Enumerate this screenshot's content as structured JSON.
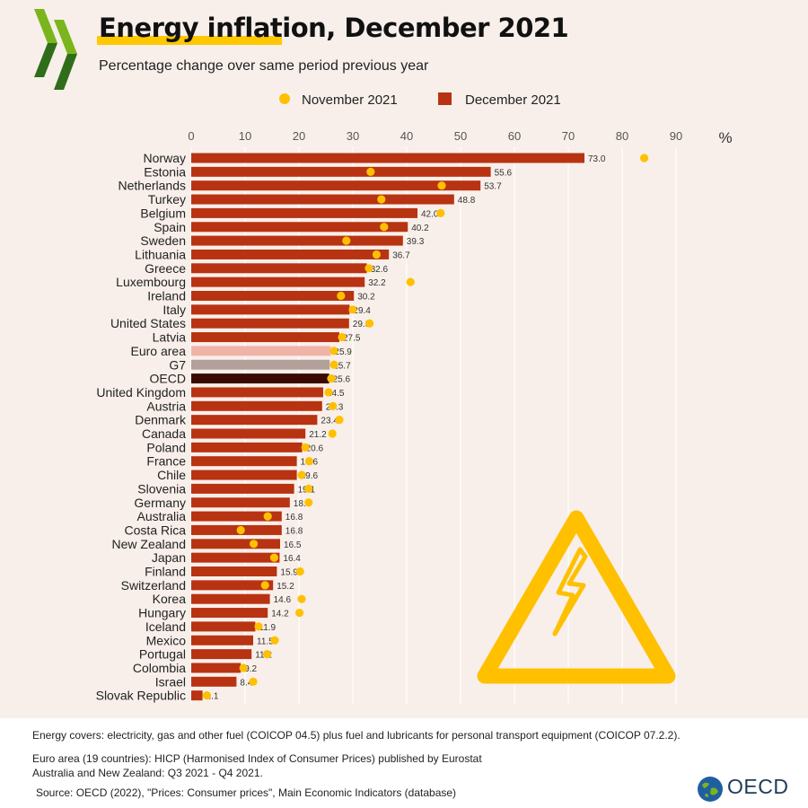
{
  "title": "Energy inflation, December 2021",
  "subtitle": "Percentage change over same period previous year",
  "colors": {
    "bar": "#b83312",
    "euro_area": "#f0b3a8",
    "g7": "#b4a09b",
    "oecd": "#3a0a00",
    "dot": "#ffc000",
    "background": "#f8efea",
    "warning": "#ffc000"
  },
  "chart_data": {
    "type": "bar",
    "orientation": "horizontal",
    "unit_label": "%",
    "xlim": [
      0,
      95
    ],
    "xticks": [
      0,
      10,
      20,
      30,
      40,
      50,
      60,
      70,
      80,
      90
    ],
    "grid": true,
    "legend": [
      {
        "name": "November 2021",
        "marker": "dot"
      },
      {
        "name": "December 2021",
        "marker": "bar"
      }
    ],
    "categories": [
      "Norway",
      "Estonia",
      "Netherlands",
      "Turkey",
      "Belgium",
      "Spain",
      "Sweden",
      "Lithuania",
      "Greece",
      "Luxembourg",
      "Ireland",
      "Italy",
      "United States",
      "Latvia",
      "Euro area",
      "G7",
      "OECD",
      "United Kingdom",
      "Austria",
      "Denmark",
      "Canada",
      "Poland",
      "France",
      "Chile",
      "Slovenia",
      "Germany",
      "Australia",
      "Costa Rica",
      "New Zealand",
      "Japan",
      "Finland",
      "Switzerland",
      "Korea",
      "Hungary",
      "Iceland",
      "Mexico",
      "Portugal",
      "Colombia",
      "Israel",
      "Slovak Republic"
    ],
    "series": [
      {
        "name": "December 2021",
        "values": [
          73.0,
          55.6,
          53.7,
          48.8,
          42.0,
          40.2,
          39.3,
          36.7,
          32.6,
          32.2,
          30.2,
          29.4,
          29.3,
          27.5,
          25.9,
          25.7,
          25.6,
          24.5,
          24.3,
          23.4,
          21.2,
          20.6,
          19.6,
          19.6,
          19.1,
          18.3,
          16.8,
          16.8,
          16.5,
          16.4,
          15.9,
          15.2,
          14.6,
          14.2,
          11.9,
          11.5,
          11.2,
          9.2,
          8.4,
          2.1
        ],
        "labels": [
          "73.0",
          "55.6",
          "53.7",
          "48.8",
          "42.0",
          "40.2",
          "39.3",
          "36.7",
          "32.6",
          "32.2",
          "30.2",
          "29.4",
          "29.3",
          "27.5",
          "25.9",
          "25.7",
          "25.6",
          "24.5",
          "24.3",
          "23.4",
          "21.2",
          "20.6",
          "19.6",
          "19.6",
          "19.1",
          "18.3",
          "16.8",
          "16.8",
          "16.5",
          "16.4",
          "15.9",
          "15.2",
          "14.6",
          "14.2",
          "11.9",
          "11.5",
          "11.2",
          "9.2",
          "8.4",
          "2.1"
        ]
      },
      {
        "name": "November 2021",
        "values": [
          84.1,
          33.3,
          46.5,
          35.3,
          46.3,
          35.8,
          28.8,
          34.4,
          33.0,
          40.7,
          27.8,
          30.0,
          33.1,
          28.0,
          26.5,
          26.5,
          26.0,
          25.5,
          26.3,
          27.5,
          26.2,
          21.2,
          21.9,
          20.5,
          21.8,
          21.8,
          14.2,
          9.2,
          11.6,
          15.4,
          20.2,
          13.7,
          20.5,
          20.1,
          12.5,
          15.5,
          14.1,
          9.7,
          11.5,
          2.9
        ]
      }
    ]
  },
  "notes": [
    "Energy covers: electricity, gas and other fuel (COICOP 04.5) plus fuel and lubricants for personal transport equipment (COICOP 07.2.2).",
    "Euro area (19 countries): HICP (Harmonised Index of Consumer Prices) published by Eurostat",
    "Australia and New Zealand: Q3 2021 - Q4 2021.",
    "Source: OECD (2022), \"Prices: Consumer prices\", Main Economic Indicators (database)"
  ],
  "brand": {
    "logo_text": "OECD"
  },
  "icons": {
    "logo": "oecd-chevrons-icon",
    "warning": "high-voltage-warning-icon",
    "globe": "oecd-globe-icon"
  }
}
